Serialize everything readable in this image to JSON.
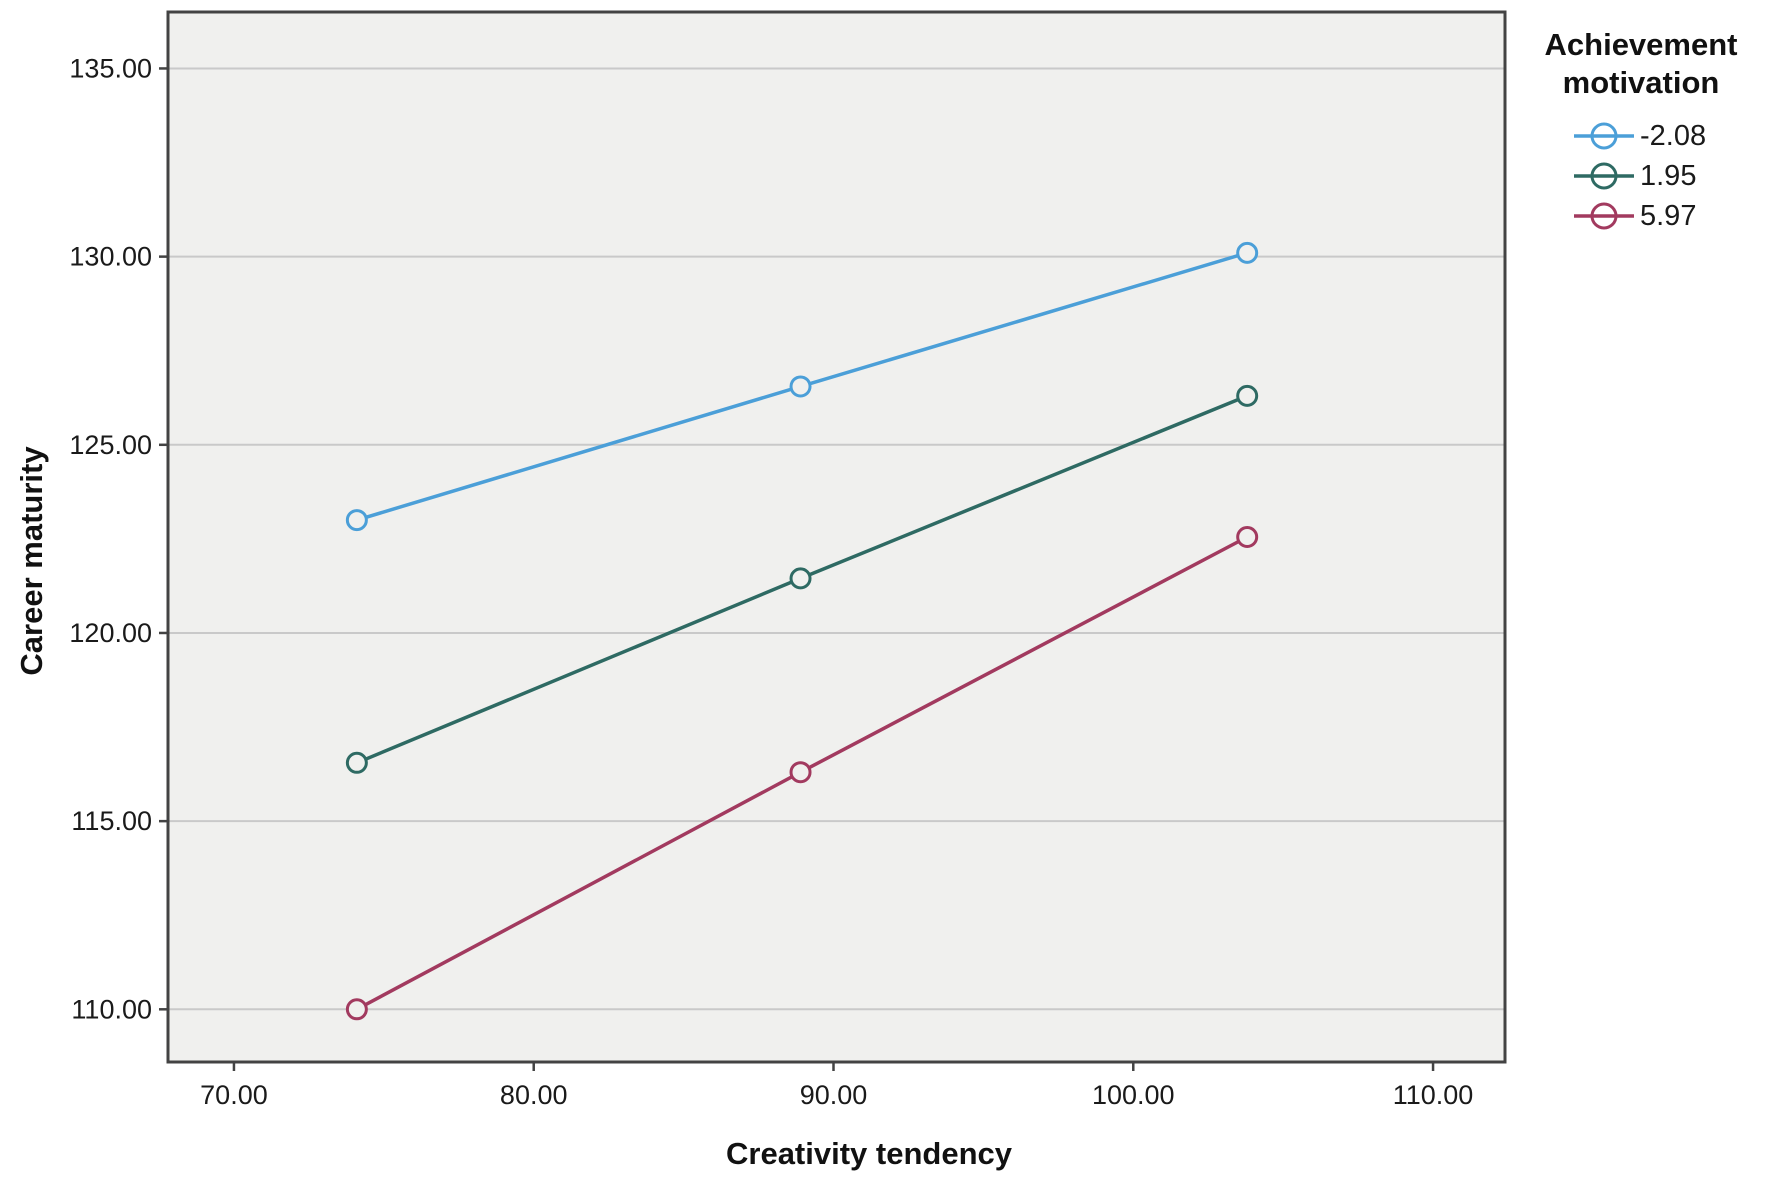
{
  "chart_data": {
    "type": "line",
    "title": "",
    "xlabel": "Creativity tendency",
    "ylabel": "Career maturity",
    "legend_title": "Achievement motivation",
    "legend_position": "top-right",
    "grid": "horizontal",
    "plot_bg": "#f0f0ee",
    "grid_color": "#c9c9c9",
    "frame_color": "#434343",
    "tick_label_format_decimals": 2,
    "x_ticks": [
      70,
      80,
      90,
      100,
      110
    ],
    "y_ticks": [
      110,
      115,
      120,
      125,
      130,
      135
    ],
    "xlim": [
      67.8,
      112.4
    ],
    "ylim": [
      108.6,
      136.5
    ],
    "x": [
      74.1,
      88.9,
      103.8
    ],
    "series": [
      {
        "name": "-2.08",
        "color": "#4b9fd8",
        "values": [
          123.0,
          126.55,
          130.1
        ]
      },
      {
        "name": "1.95",
        "color": "#2e6a63",
        "values": [
          116.55,
          121.45,
          126.3
        ]
      },
      {
        "name": "5.97",
        "color": "#a23a5f",
        "values": [
          110.0,
          116.3,
          122.55
        ]
      }
    ]
  }
}
